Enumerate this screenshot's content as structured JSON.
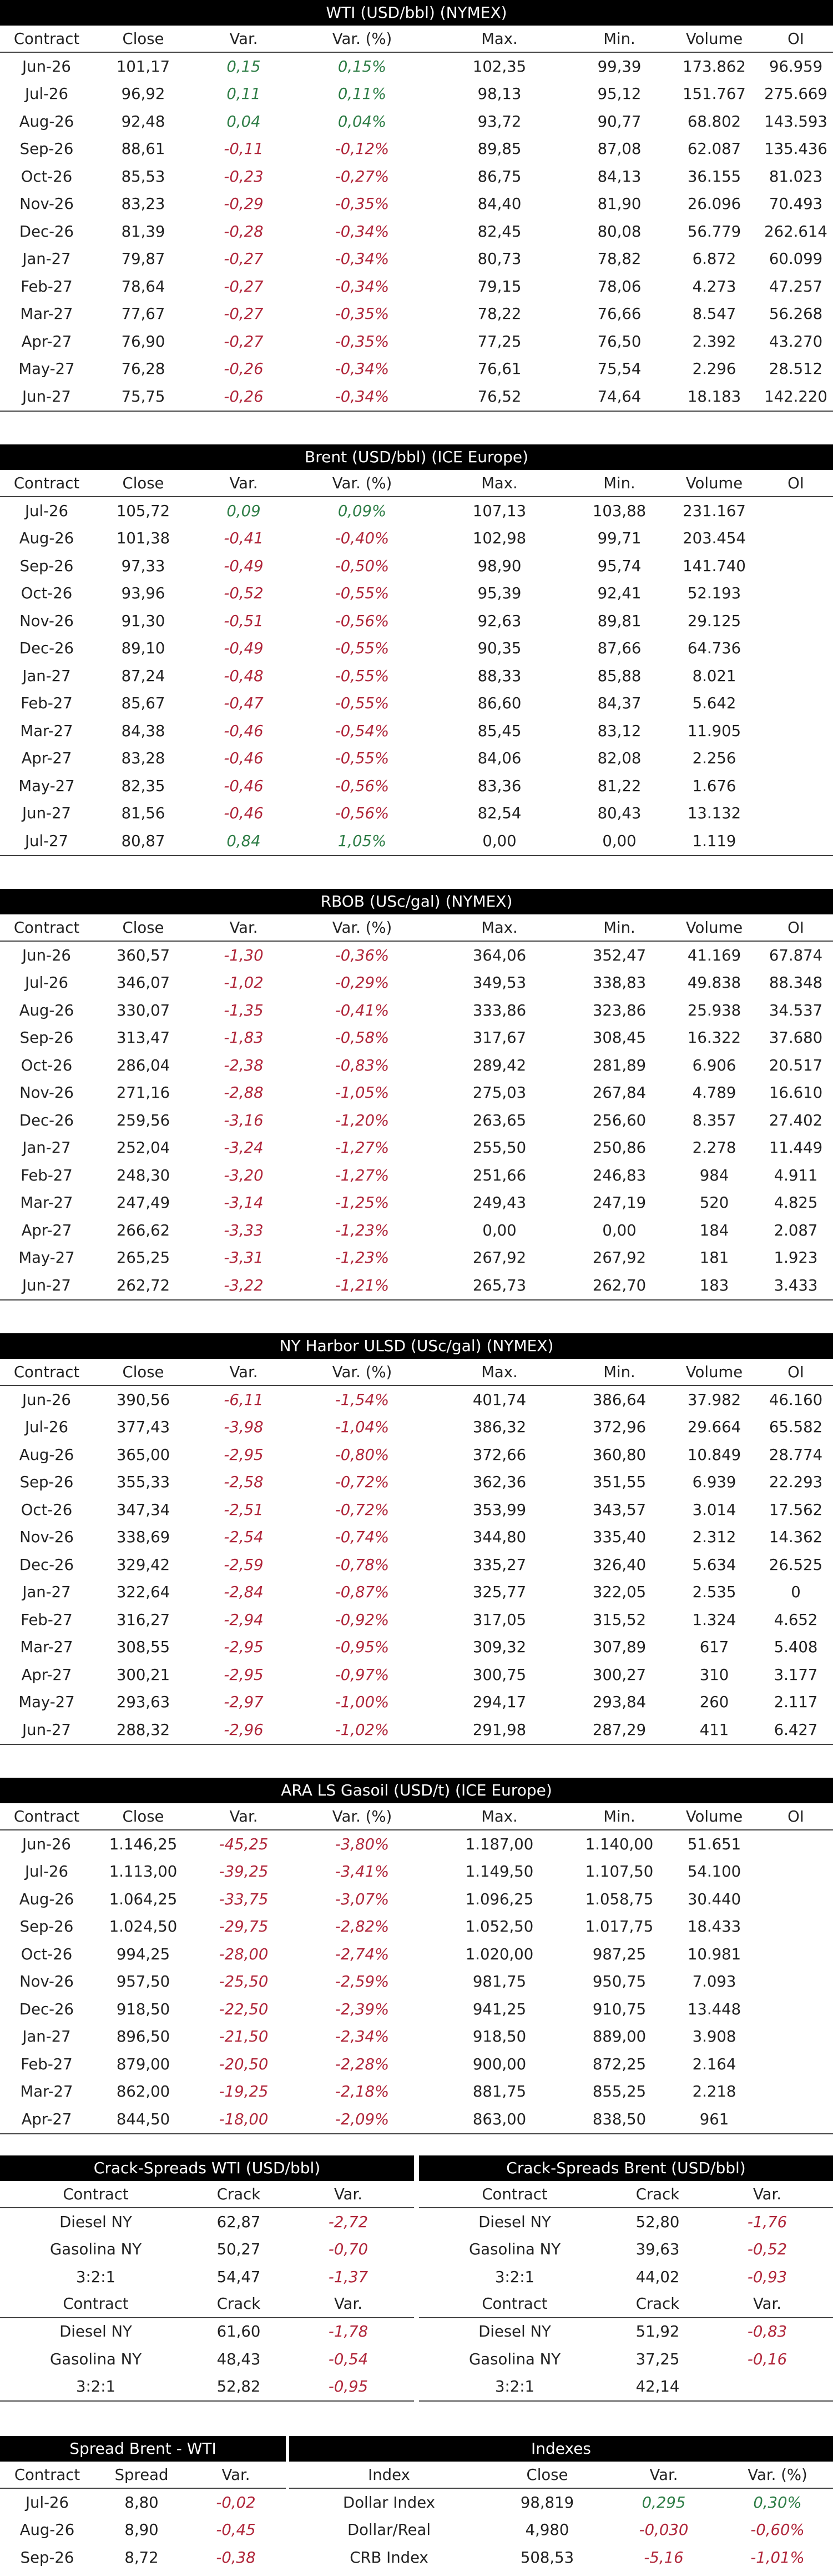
{
  "colors": {
    "positive": "#2e7d46",
    "negative": "#b0263a",
    "header_bg": "#000000"
  },
  "futures": [
    {
      "title": "WTI (USD/bbl) (NYMEX)",
      "columns": [
        "Contract",
        "Close",
        "Var.",
        "Var. (%)",
        "Max.",
        "Min.",
        "Volume",
        "OI"
      ],
      "rows": [
        [
          "Jun-26",
          "101,17",
          "0,15",
          "0,15%",
          "102,35",
          "99,39",
          "173.862",
          "96.959"
        ],
        [
          "Jul-26",
          "96,92",
          "0,11",
          "0,11%",
          "98,13",
          "95,12",
          "151.767",
          "275.669"
        ],
        [
          "Aug-26",
          "92,48",
          "0,04",
          "0,04%",
          "93,72",
          "90,77",
          "68.802",
          "143.593"
        ],
        [
          "Sep-26",
          "88,61",
          "-0,11",
          "-0,12%",
          "89,85",
          "87,08",
          "62.087",
          "135.436"
        ],
        [
          "Oct-26",
          "85,53",
          "-0,23",
          "-0,27%",
          "86,75",
          "84,13",
          "36.155",
          "81.023"
        ],
        [
          "Nov-26",
          "83,23",
          "-0,29",
          "-0,35%",
          "84,40",
          "81,90",
          "26.096",
          "70.493"
        ],
        [
          "Dec-26",
          "81,39",
          "-0,28",
          "-0,34%",
          "82,45",
          "80,08",
          "56.779",
          "262.614"
        ],
        [
          "Jan-27",
          "79,87",
          "-0,27",
          "-0,34%",
          "80,73",
          "78,82",
          "6.872",
          "60.099"
        ],
        [
          "Feb-27",
          "78,64",
          "-0,27",
          "-0,34%",
          "79,15",
          "78,06",
          "4.273",
          "47.257"
        ],
        [
          "Mar-27",
          "77,67",
          "-0,27",
          "-0,35%",
          "78,22",
          "76,66",
          "8.547",
          "56.268"
        ],
        [
          "Apr-27",
          "76,90",
          "-0,27",
          "-0,35%",
          "77,25",
          "76,50",
          "2.392",
          "43.270"
        ],
        [
          "May-27",
          "76,28",
          "-0,26",
          "-0,34%",
          "76,61",
          "75,54",
          "2.296",
          "28.512"
        ],
        [
          "Jun-27",
          "75,75",
          "-0,26",
          "-0,34%",
          "76,52",
          "74,64",
          "18.183",
          "142.220"
        ]
      ]
    },
    {
      "title": "Brent (USD/bbl) (ICE Europe)",
      "columns": [
        "Contract",
        "Close",
        "Var.",
        "Var. (%)",
        "Max.",
        "Min.",
        "Volume",
        "OI"
      ],
      "rows": [
        [
          "Jul-26",
          "105,72",
          "0,09",
          "0,09%",
          "107,13",
          "103,88",
          "231.167",
          ""
        ],
        [
          "Aug-26",
          "101,38",
          "-0,41",
          "-0,40%",
          "102,98",
          "99,71",
          "203.454",
          ""
        ],
        [
          "Sep-26",
          "97,33",
          "-0,49",
          "-0,50%",
          "98,90",
          "95,74",
          "141.740",
          ""
        ],
        [
          "Oct-26",
          "93,96",
          "-0,52",
          "-0,55%",
          "95,39",
          "92,41",
          "52.193",
          ""
        ],
        [
          "Nov-26",
          "91,30",
          "-0,51",
          "-0,56%",
          "92,63",
          "89,81",
          "29.125",
          ""
        ],
        [
          "Dec-26",
          "89,10",
          "-0,49",
          "-0,55%",
          "90,35",
          "87,66",
          "64.736",
          ""
        ],
        [
          "Jan-27",
          "87,24",
          "-0,48",
          "-0,55%",
          "88,33",
          "85,88",
          "8.021",
          ""
        ],
        [
          "Feb-27",
          "85,67",
          "-0,47",
          "-0,55%",
          "86,60",
          "84,37",
          "5.642",
          ""
        ],
        [
          "Mar-27",
          "84,38",
          "-0,46",
          "-0,54%",
          "85,45",
          "83,12",
          "11.905",
          ""
        ],
        [
          "Apr-27",
          "83,28",
          "-0,46",
          "-0,55%",
          "84,06",
          "82,08",
          "2.256",
          ""
        ],
        [
          "May-27",
          "82,35",
          "-0,46",
          "-0,56%",
          "83,36",
          "81,22",
          "1.676",
          ""
        ],
        [
          "Jun-27",
          "81,56",
          "-0,46",
          "-0,56%",
          "82,54",
          "80,43",
          "13.132",
          ""
        ],
        [
          "Jul-27",
          "80,87",
          "0,84",
          "1,05%",
          "0,00",
          "0,00",
          "1.119",
          ""
        ]
      ]
    },
    {
      "title": "RBOB (USc/gal) (NYMEX)",
      "columns": [
        "Contract",
        "Close",
        "Var.",
        "Var. (%)",
        "Max.",
        "Min.",
        "Volume",
        "OI"
      ],
      "rows": [
        [
          "Jun-26",
          "360,57",
          "-1,30",
          "-0,36%",
          "364,06",
          "352,47",
          "41.169",
          "67.874"
        ],
        [
          "Jul-26",
          "346,07",
          "-1,02",
          "-0,29%",
          "349,53",
          "338,83",
          "49.838",
          "88.348"
        ],
        [
          "Aug-26",
          "330,07",
          "-1,35",
          "-0,41%",
          "333,86",
          "323,86",
          "25.938",
          "34.537"
        ],
        [
          "Sep-26",
          "313,47",
          "-1,83",
          "-0,58%",
          "317,67",
          "308,45",
          "16.322",
          "37.680"
        ],
        [
          "Oct-26",
          "286,04",
          "-2,38",
          "-0,83%",
          "289,42",
          "281,89",
          "6.906",
          "20.517"
        ],
        [
          "Nov-26",
          "271,16",
          "-2,88",
          "-1,05%",
          "275,03",
          "267,84",
          "4.789",
          "16.610"
        ],
        [
          "Dec-26",
          "259,56",
          "-3,16",
          "-1,20%",
          "263,65",
          "256,60",
          "8.357",
          "27.402"
        ],
        [
          "Jan-27",
          "252,04",
          "-3,24",
          "-1,27%",
          "255,50",
          "250,86",
          "2.278",
          "11.449"
        ],
        [
          "Feb-27",
          "248,30",
          "-3,20",
          "-1,27%",
          "251,66",
          "246,83",
          "984",
          "4.911"
        ],
        [
          "Mar-27",
          "247,49",
          "-3,14",
          "-1,25%",
          "249,43",
          "247,19",
          "520",
          "4.825"
        ],
        [
          "Apr-27",
          "266,62",
          "-3,33",
          "-1,23%",
          "0,00",
          "0,00",
          "184",
          "2.087"
        ],
        [
          "May-27",
          "265,25",
          "-3,31",
          "-1,23%",
          "267,92",
          "267,92",
          "181",
          "1.923"
        ],
        [
          "Jun-27",
          "262,72",
          "-3,22",
          "-1,21%",
          "265,73",
          "262,70",
          "183",
          "3.433"
        ]
      ]
    },
    {
      "title": "NY Harbor ULSD (USc/gal) (NYMEX)",
      "columns": [
        "Contract",
        "Close",
        "Var.",
        "Var. (%)",
        "Max.",
        "Min.",
        "Volume",
        "OI"
      ],
      "rows": [
        [
          "Jun-26",
          "390,56",
          "-6,11",
          "-1,54%",
          "401,74",
          "386,64",
          "37.982",
          "46.160"
        ],
        [
          "Jul-26",
          "377,43",
          "-3,98",
          "-1,04%",
          "386,32",
          "372,96",
          "29.664",
          "65.582"
        ],
        [
          "Aug-26",
          "365,00",
          "-2,95",
          "-0,80%",
          "372,66",
          "360,80",
          "10.849",
          "28.774"
        ],
        [
          "Sep-26",
          "355,33",
          "-2,58",
          "-0,72%",
          "362,36",
          "351,55",
          "6.939",
          "22.293"
        ],
        [
          "Oct-26",
          "347,34",
          "-2,51",
          "-0,72%",
          "353,99",
          "343,57",
          "3.014",
          "17.562"
        ],
        [
          "Nov-26",
          "338,69",
          "-2,54",
          "-0,74%",
          "344,80",
          "335,40",
          "2.312",
          "14.362"
        ],
        [
          "Dec-26",
          "329,42",
          "-2,59",
          "-0,78%",
          "335,27",
          "326,40",
          "5.634",
          "26.525"
        ],
        [
          "Jan-27",
          "322,64",
          "-2,84",
          "-0,87%",
          "325,77",
          "322,05",
          "2.535",
          "0"
        ],
        [
          "Feb-27",
          "316,27",
          "-2,94",
          "-0,92%",
          "317,05",
          "315,52",
          "1.324",
          "4.652"
        ],
        [
          "Mar-27",
          "308,55",
          "-2,95",
          "-0,95%",
          "309,32",
          "307,89",
          "617",
          "5.408"
        ],
        [
          "Apr-27",
          "300,21",
          "-2,95",
          "-0,97%",
          "300,75",
          "300,27",
          "310",
          "3.177"
        ],
        [
          "May-27",
          "293,63",
          "-2,97",
          "-1,00%",
          "294,17",
          "293,84",
          "260",
          "2.117"
        ],
        [
          "Jun-27",
          "288,32",
          "-2,96",
          "-1,02%",
          "291,98",
          "287,29",
          "411",
          "6.427"
        ]
      ]
    },
    {
      "title": "ARA LS Gasoil (USD/t) (ICE Europe)",
      "columns": [
        "Contract",
        "Close",
        "Var.",
        "Var. (%)",
        "Max.",
        "Min.",
        "Volume",
        "OI"
      ],
      "rows": [
        [
          "Jun-26",
          "1.146,25",
          "-45,25",
          "-3,80%",
          "1.187,00",
          "1.140,00",
          "51.651",
          ""
        ],
        [
          "Jul-26",
          "1.113,00",
          "-39,25",
          "-3,41%",
          "1.149,50",
          "1.107,50",
          "54.100",
          ""
        ],
        [
          "Aug-26",
          "1.064,25",
          "-33,75",
          "-3,07%",
          "1.096,25",
          "1.058,75",
          "30.440",
          ""
        ],
        [
          "Sep-26",
          "1.024,50",
          "-29,75",
          "-2,82%",
          "1.052,50",
          "1.017,75",
          "18.433",
          ""
        ],
        [
          "Oct-26",
          "994,25",
          "-28,00",
          "-2,74%",
          "1.020,00",
          "987,25",
          "10.981",
          ""
        ],
        [
          "Nov-26",
          "957,50",
          "-25,50",
          "-2,59%",
          "981,75",
          "950,75",
          "7.093",
          ""
        ],
        [
          "Dec-26",
          "918,50",
          "-22,50",
          "-2,39%",
          "941,25",
          "910,75",
          "13.448",
          ""
        ],
        [
          "Jan-27",
          "896,50",
          "-21,50",
          "-2,34%",
          "918,50",
          "889,00",
          "3.908",
          ""
        ],
        [
          "Feb-27",
          "879,00",
          "-20,50",
          "-2,28%",
          "900,00",
          "872,25",
          "2.164",
          ""
        ],
        [
          "Mar-27",
          "862,00",
          "-19,25",
          "-2,18%",
          "881,75",
          "855,25",
          "2.218",
          ""
        ],
        [
          "Apr-27",
          "844,50",
          "-18,00",
          "-2,09%",
          "863,00",
          "838,50",
          "961",
          ""
        ]
      ]
    }
  ],
  "crack_wti": {
    "title": "Crack-Spreads WTI (USD/bbl)",
    "columns": [
      "Contract",
      "Crack",
      "Var."
    ],
    "blocks": [
      [
        [
          "Diesel NY",
          "62,87",
          "-2,72"
        ],
        [
          "Gasolina NY",
          "50,27",
          "-0,70"
        ],
        [
          "3:2:1",
          "54,47",
          "-1,37"
        ]
      ],
      [
        [
          "Diesel NY",
          "61,60",
          "-1,78"
        ],
        [
          "Gasolina NY",
          "48,43",
          "-0,54"
        ],
        [
          "3:2:1",
          "52,82",
          "-0,95"
        ]
      ]
    ]
  },
  "crack_brent": {
    "title": "Crack-Spreads Brent (USD/bbl)",
    "columns": [
      "Contract",
      "Crack",
      "Var."
    ],
    "blocks": [
      [
        [
          "Diesel NY",
          "52,80",
          "-1,76"
        ],
        [
          "Gasolina NY",
          "39,63",
          "-0,52"
        ],
        [
          "3:2:1",
          "44,02",
          "-0,93"
        ]
      ],
      [
        [
          "Diesel NY",
          "51,92",
          "-0,83"
        ],
        [
          "Gasolina NY",
          "37,25",
          "-0,16"
        ],
        [
          "3:2:1",
          "42,14",
          ""
        ]
      ]
    ]
  },
  "spread": {
    "title": "Spread Brent - WTI",
    "columns": [
      "Contract",
      "Spread",
      "Var."
    ],
    "rows": [
      [
        "Jul-26",
        "8,80",
        "-0,02"
      ],
      [
        "Aug-26",
        "8,90",
        "-0,45"
      ],
      [
        "Sep-26",
        "8,72",
        "-0,38"
      ]
    ]
  },
  "indexes": {
    "title": "Indexes",
    "columns": [
      "Index",
      "Close",
      "Var.",
      "Var. (%)"
    ],
    "rows": [
      [
        "Dollar Index",
        "98,819",
        "0,295",
        "0,30%"
      ],
      [
        "Dollar/Real",
        "4,980",
        "-0,030",
        "-0,60%"
      ],
      [
        "CRB Index",
        "508,53",
        "-5,16",
        "-1,01%"
      ]
    ]
  }
}
